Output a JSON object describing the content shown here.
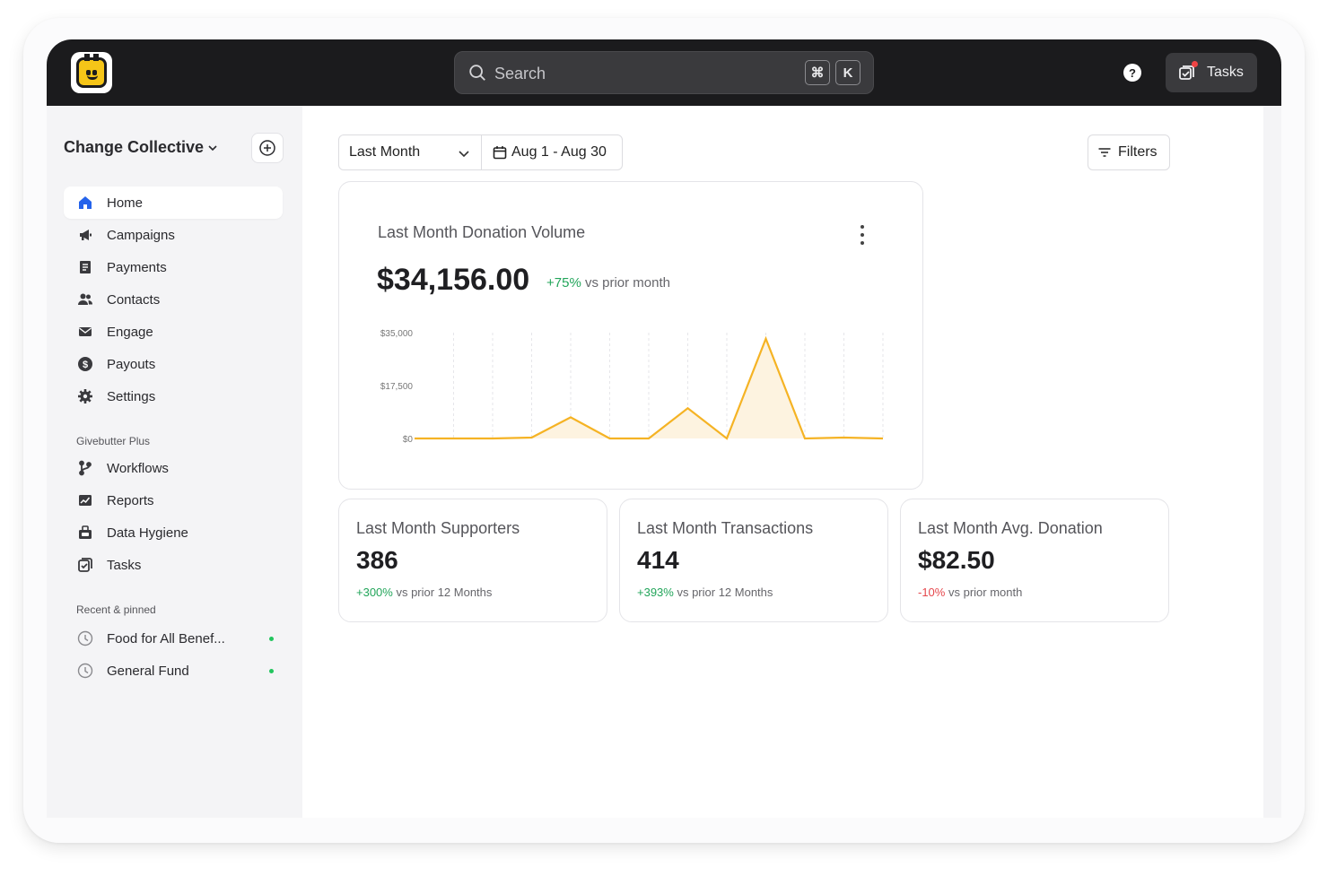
{
  "header": {
    "search_placeholder": "Search",
    "shortcut_cmd": "⌘",
    "shortcut_key": "K",
    "help_label": "?",
    "tasks_label": "Tasks"
  },
  "sidebar": {
    "org_name": "Change Collective",
    "nav": [
      {
        "label": "Home",
        "icon": "home-icon",
        "active": true
      },
      {
        "label": "Campaigns",
        "icon": "megaphone-icon"
      },
      {
        "label": "Payments",
        "icon": "receipt-icon"
      },
      {
        "label": "Contacts",
        "icon": "users-icon"
      },
      {
        "label": "Engage",
        "icon": "envelope-icon"
      },
      {
        "label": "Payouts",
        "icon": "dollar-circle-icon"
      },
      {
        "label": "Settings",
        "icon": "gear-icon"
      }
    ],
    "plus_section": "Givebutter Plus",
    "plus_nav": [
      {
        "label": "Workflows",
        "icon": "branch-icon"
      },
      {
        "label": "Reports",
        "icon": "chart-icon"
      },
      {
        "label": "Data Hygiene",
        "icon": "broom-icon"
      },
      {
        "label": "Tasks",
        "icon": "checkbox-icon"
      }
    ],
    "recent_section": "Recent & pinned",
    "recent": [
      {
        "label": "Food for All Benef...",
        "icon": "clock-icon"
      },
      {
        "label": "General Fund",
        "icon": "clock-icon"
      }
    ]
  },
  "toolbar": {
    "range_label": "Last Month",
    "date_range": "Aug 1 - Aug 30",
    "filters_label": "Filters"
  },
  "volume_card": {
    "title": "Last Month Donation Volume",
    "value": "$34,156.00",
    "change": "+75%",
    "change_suffix": "vs prior month"
  },
  "chart_data": {
    "type": "area",
    "title": "Last Month Donation Volume",
    "xlabel": "",
    "ylabel": "",
    "y_ticks": [
      "$35,000",
      "$17,500",
      "$0"
    ],
    "ylim": [
      0,
      35000
    ],
    "x": [
      1,
      2,
      3,
      4,
      5,
      6,
      7,
      8,
      9,
      10,
      11,
      12,
      13
    ],
    "values": [
      0,
      0,
      0,
      300,
      7000,
      0,
      0,
      10000,
      0,
      33000,
      0,
      300,
      0
    ],
    "color": "#f5b324",
    "fill": "#fdf3e0",
    "grid": "vertical-dashed"
  },
  "stats": [
    {
      "title": "Last Month Supporters",
      "value": "386",
      "change": "+300%",
      "change_type": "pos",
      "suffix": "vs prior 12 Months"
    },
    {
      "title": "Last Month Transactions",
      "value": "414",
      "change": "+393%",
      "change_type": "pos",
      "suffix": "vs prior 12 Months"
    },
    {
      "title": "Last Month Avg. Donation",
      "value": "$82.50",
      "change": "-10%",
      "change_type": "neg",
      "suffix": "vs prior month"
    }
  ]
}
